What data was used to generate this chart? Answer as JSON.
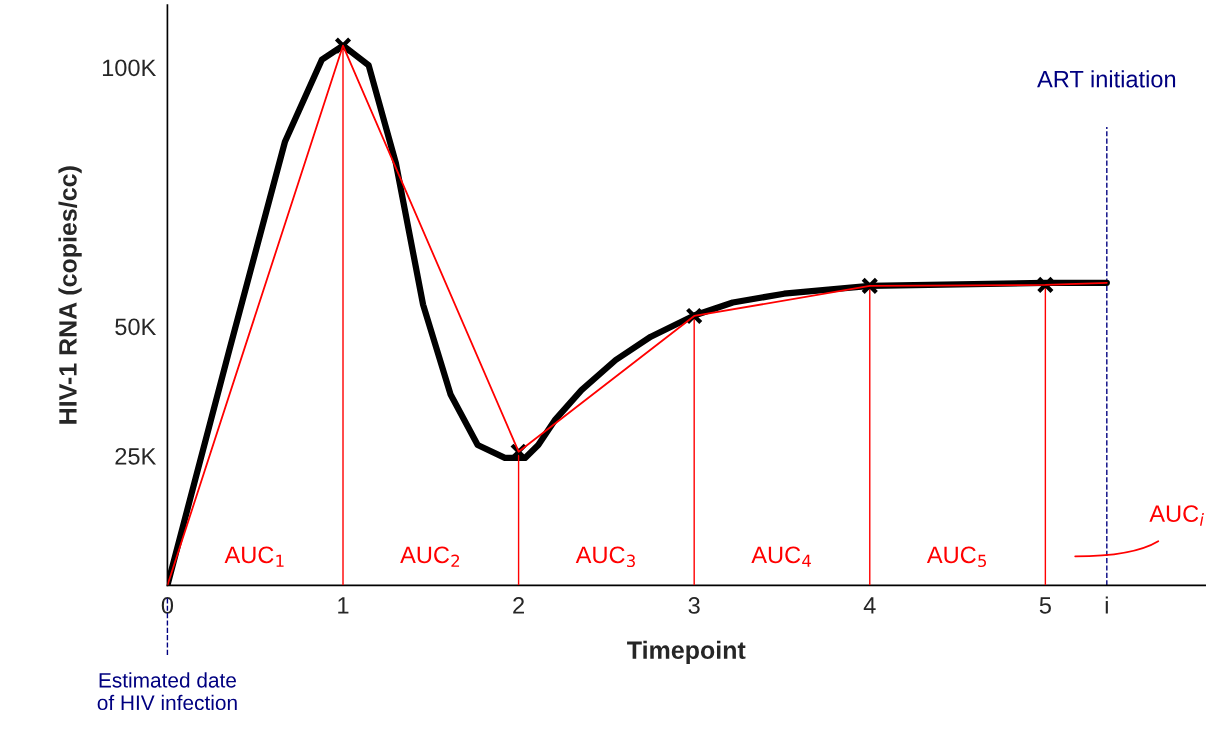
{
  "chart_data": {
    "type": "line",
    "xlabel": "Timepoint",
    "ylabel": "HIV-1 RNA (copies/cc)",
    "xlim": [
      0,
      5.91
    ],
    "ylim": [
      0,
      112000
    ],
    "xticks": [
      0,
      1,
      2,
      3,
      4,
      5,
      {
        "value": 5.35,
        "label": "i"
      }
    ],
    "yticks": [
      {
        "value": 25000,
        "label": "25K"
      },
      {
        "value": 50000,
        "label": "50K"
      },
      {
        "value": 100000,
        "label": "100K"
      }
    ],
    "series": [
      {
        "color": "#000000",
        "x": [
          0,
          0.35,
          0.67,
          0.88,
          1,
          1.146,
          1.301,
          1.456,
          1.612,
          1.767,
          1.922,
          2.037,
          2.112,
          2.209,
          2.358,
          2.553,
          2.753,
          3,
          3.22,
          3.512,
          4,
          5,
          5.35
        ],
        "values": [
          0,
          45100,
          85700,
          101500,
          104200,
          100400,
          81500,
          54200,
          36900,
          27100,
          24600,
          24600,
          27100,
          32000,
          37700,
          43500,
          48000,
          52100,
          54600,
          56300,
          57800,
          58400,
          58400
        ]
      },
      {
        "color": "#ff0000",
        "x": [
          0,
          1,
          2,
          3,
          4,
          5,
          5.35
        ],
        "values": [
          0,
          104200,
          25800,
          52000,
          57800,
          58000,
          58400
        ]
      },
      {
        "type": "bar",
        "color": "#ff0000",
        "x": [
          1,
          2,
          3,
          4,
          5
        ],
        "values": [
          104200,
          25800,
          52000,
          57800,
          58000
        ]
      },
      {
        "type": "scatter",
        "color": "#000000",
        "marker": "cross",
        "x": [
          1,
          2,
          3,
          4,
          5
        ],
        "values": [
          104200,
          25800,
          52000,
          57800,
          58000
        ]
      }
    ],
    "ref_lines": [
      {
        "axis": "x",
        "value": 5.35,
        "label": "ART initiation",
        "color": "#000080",
        "line_style": "dashed"
      },
      {
        "axis": "x",
        "value": 0,
        "label": "Estimated date\nof HIV infection",
        "color": "#000080",
        "line_style": "dashed"
      }
    ],
    "annotations": [
      "AUC$_{1}$",
      "AUC$_{2}$",
      "AUC$_{3}$",
      "AUC$_{4}$",
      "AUC$_{5}$",
      "AUC$_{i}$"
    ]
  }
}
